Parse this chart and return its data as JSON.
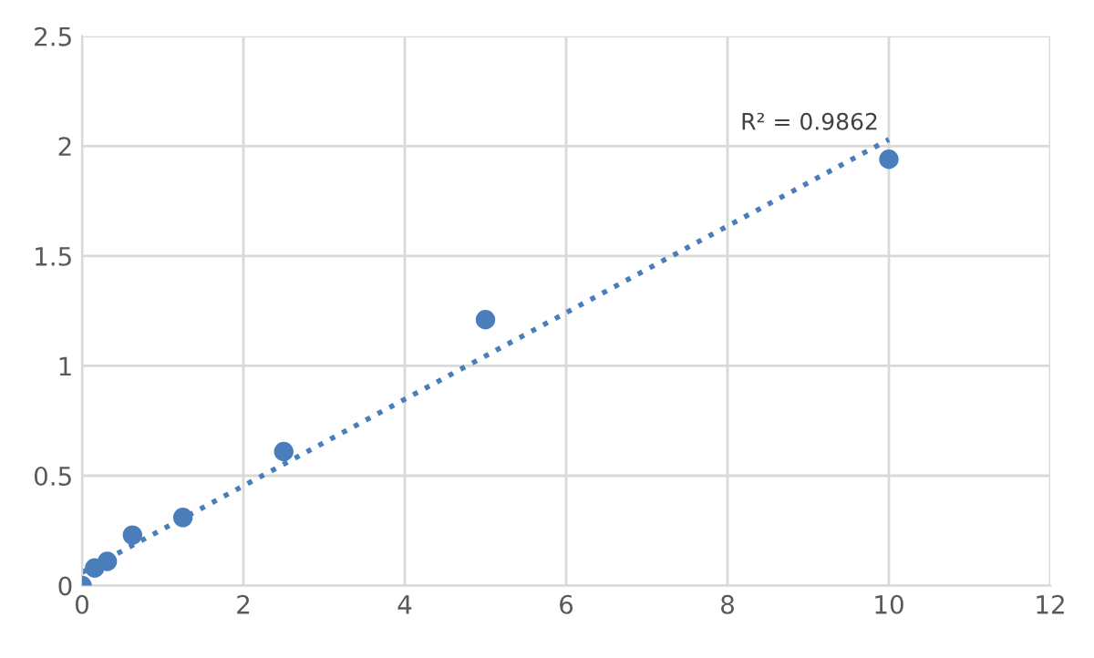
{
  "chart_data": {
    "type": "scatter",
    "xlim": [
      0,
      12
    ],
    "ylim": [
      0,
      2.5
    ],
    "xticks": [
      0,
      2,
      4,
      6,
      8,
      10,
      12
    ],
    "yticks": [
      0,
      0.5,
      1,
      1.5,
      2,
      2.5
    ],
    "grid": true,
    "legend": false,
    "series": [
      {
        "color": "#4a7ebb",
        "marker": "circle",
        "x": [
          0,
          0.156,
          0.3125,
          0.625,
          1.25,
          2.5,
          5,
          10
        ],
        "values": [
          0,
          0.08,
          0.11,
          0.23,
          0.31,
          0.61,
          1.21,
          1.94
        ]
      },
      {
        "type": "line",
        "color": "#4a7ebb",
        "line_style": "dotted",
        "marker": "none",
        "x": [
          0,
          10
        ],
        "values": [
          0.06,
          2.03
        ]
      }
    ],
    "annotations": [
      {
        "text": "R² = 0.9862",
        "x": 10,
        "y": 2.03
      }
    ]
  }
}
